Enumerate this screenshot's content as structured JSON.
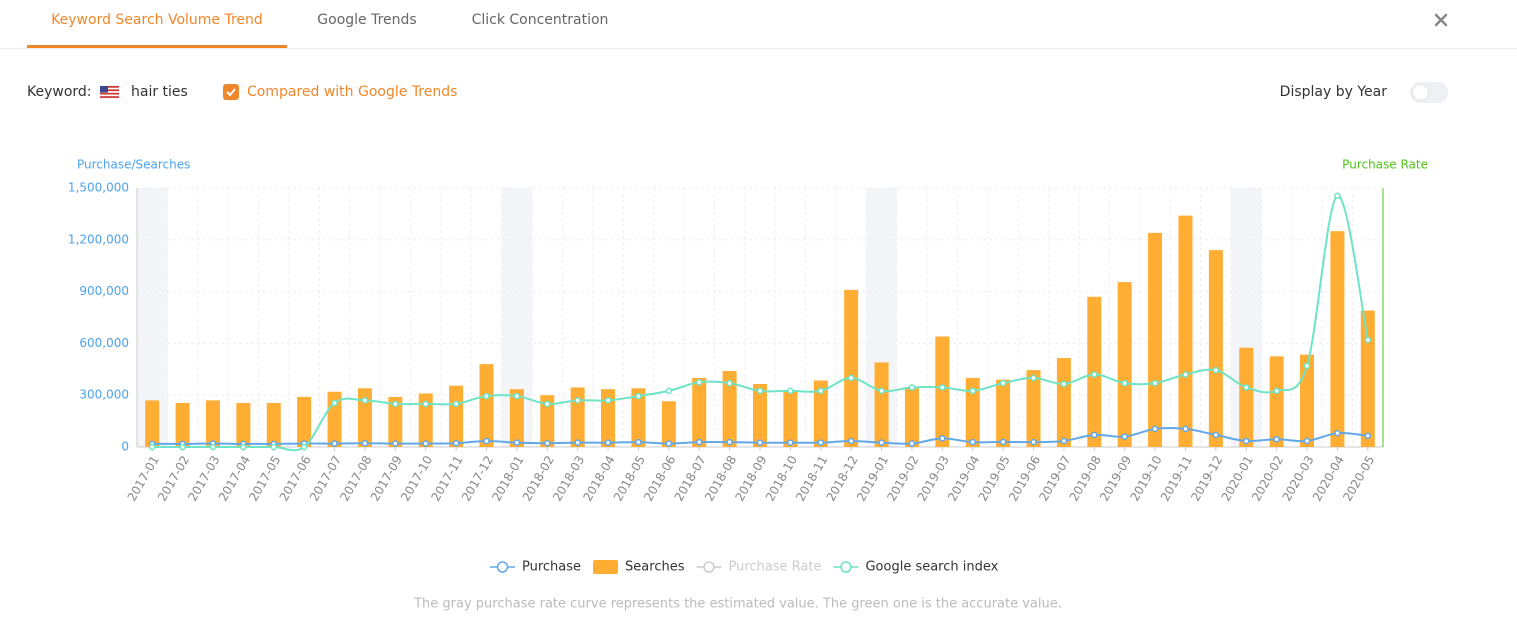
{
  "tabs": [
    "Keyword Search Volume Trend",
    "Google Trends",
    "Click Concentration"
  ],
  "filters": {
    "keyword_label": "Keyword:",
    "keyword": "hair ties",
    "compare_label": "Compared with Google Trends",
    "toggle_label": "Display by Year"
  },
  "chart_data": {
    "type": "combo",
    "y_label": "Purchase/Searches",
    "y2_label": "Purchase Rate",
    "categories": [
      "2017-01",
      "2017-02",
      "2017-03",
      "2017-04",
      "2017-05",
      "2017-06",
      "2017-07",
      "2017-08",
      "2017-09",
      "2017-10",
      "2017-11",
      "2017-12",
      "2018-01",
      "2018-02",
      "2018-03",
      "2018-04",
      "2018-05",
      "2018-06",
      "2018-07",
      "2018-08",
      "2018-09",
      "2018-10",
      "2018-11",
      "2018-12",
      "2019-01",
      "2019-02",
      "2019-03",
      "2019-04",
      "2019-05",
      "2019-06",
      "2019-07",
      "2019-08",
      "2019-09",
      "2019-10",
      "2019-11",
      "2019-12",
      "2020-01",
      "2020-02",
      "2020-03",
      "2020-04",
      "2020-05"
    ],
    "ylim": [
      0,
      1500000
    ],
    "yticks": [
      0,
      {
        "value": 300000,
        "label": "300,000"
      },
      {
        "value": 600000,
        "label": "600,000"
      },
      {
        "value": 900000,
        "label": "900,000"
      },
      {
        "value": 1200000,
        "label": "1,200,000"
      },
      {
        "value": 1500000,
        "label": "1,500,000"
      }
    ],
    "grid": true,
    "series": [
      {
        "name": "Purchase",
        "type": "line",
        "color": "#62a8e8",
        "values": [
          18000,
          18000,
          20000,
          18000,
          18000,
          20000,
          20000,
          22000,
          20000,
          20000,
          22000,
          35000,
          25000,
          22000,
          25000,
          25000,
          28000,
          20000,
          28000,
          28000,
          25000,
          25000,
          25000,
          35000,
          25000,
          20000,
          50000,
          28000,
          30000,
          28000,
          35000,
          70000,
          60000,
          105000,
          105000,
          70000,
          35000,
          45000,
          35000,
          80000,
          65000
        ]
      },
      {
        "name": "Searches",
        "type": "bar",
        "color": "#ffad33",
        "values": [
          270000,
          255000,
          270000,
          255000,
          255000,
          290000,
          320000,
          340000,
          290000,
          310000,
          355000,
          480000,
          335000,
          300000,
          345000,
          335000,
          340000,
          265000,
          400000,
          440000,
          365000,
          320000,
          385000,
          910000,
          490000,
          340000,
          640000,
          400000,
          390000,
          445000,
          515000,
          870000,
          955000,
          1240000,
          1340000,
          1140000,
          575000,
          525000,
          535000,
          1250000,
          790000
        ]
      },
      {
        "name": "Purchase Rate",
        "type": "line",
        "color": "#cccccc",
        "visible": false
      },
      {
        "name": "Google search index",
        "type": "line",
        "color": "#6ee3c5",
        "values": [
          0,
          0,
          0,
          0,
          0,
          0,
          255000,
          270000,
          250000,
          250000,
          250000,
          295000,
          295000,
          250000,
          270000,
          270000,
          295000,
          325000,
          375000,
          370000,
          325000,
          325000,
          325000,
          400000,
          325000,
          345000,
          345000,
          325000,
          370000,
          400000,
          365000,
          420000,
          370000,
          370000,
          420000,
          445000,
          345000,
          325000,
          470000,
          1455000,
          620000
        ]
      }
    ],
    "note": "The gray purchase rate curve represents the estimated value. The green one is the accurate value."
  }
}
